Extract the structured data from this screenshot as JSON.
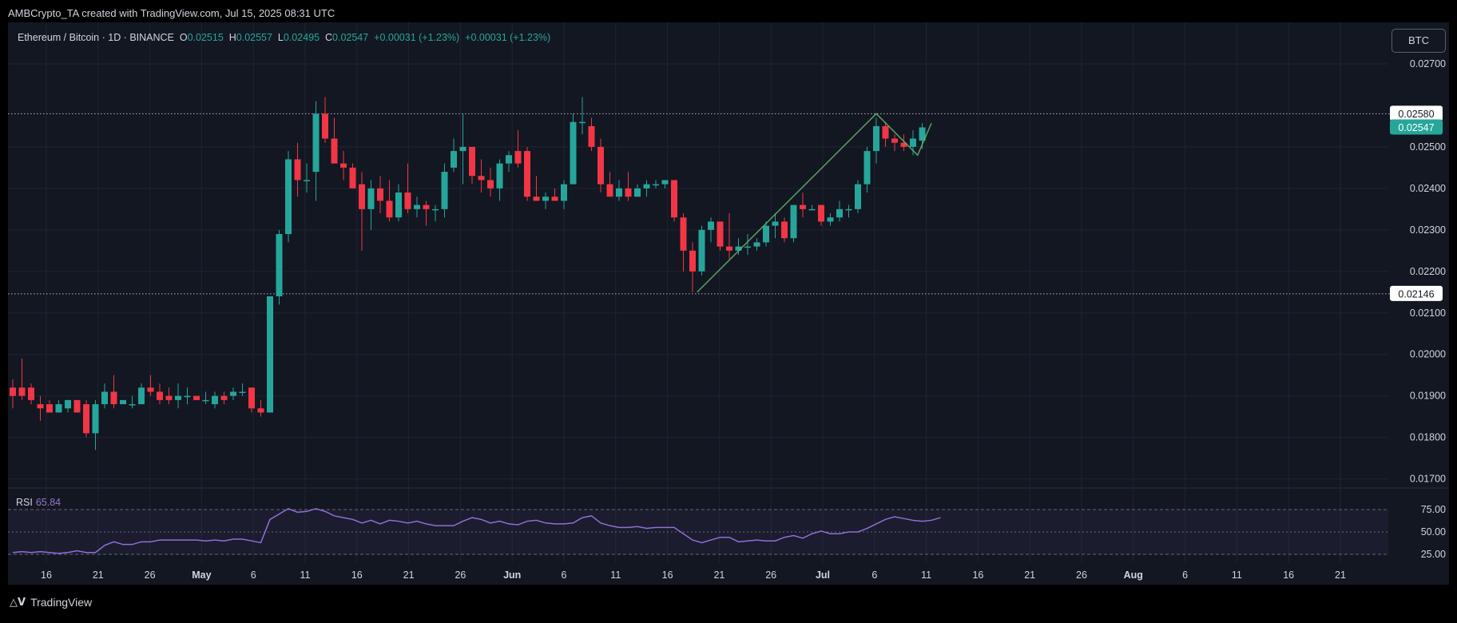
{
  "header": {
    "attribution": "AMBCrypto_TA created with TradingView.com, Jul 15, 2025 08:31 UTC"
  },
  "legend": {
    "symbol": "Ethereum / Bitcoin · 1D · BINANCE",
    "o_label": "O",
    "o_value": "0.02515",
    "h_label": "H",
    "h_value": "0.02557",
    "l_label": "L",
    "l_value": "0.02495",
    "c_label": "C",
    "c_value": "0.02547",
    "change1": "+0.00031 (+1.23%)",
    "change2": "+0.00031 (+1.23%)"
  },
  "currency_badge": "BTC",
  "rsi_label": {
    "name": "RSI",
    "value": "65.84"
  },
  "branding": {
    "text": "TradingView"
  },
  "colors": {
    "background": "#131722",
    "up": "#26a69a",
    "down": "#f23645",
    "rsi": "#8e6fd6",
    "trendline": "#66bb6a",
    "grid": "#1f2430",
    "text": "#d1d4dc"
  },
  "chart_data": {
    "type": "candlestick",
    "x_tick_labels": [
      "16",
      "21",
      "26",
      "May",
      "6",
      "11",
      "16",
      "21",
      "26",
      "Jun",
      "6",
      "11",
      "16",
      "21",
      "26",
      "Jul",
      "6",
      "11",
      "16",
      "21",
      "26",
      "Aug",
      "6",
      "11",
      "16",
      "21"
    ],
    "y_axis": {
      "ticks": [
        "0.02700",
        "0.02500",
        "0.02400",
        "0.02300",
        "0.02200",
        "0.02100",
        "0.02000",
        "0.01900",
        "0.01800",
        "0.01700"
      ],
      "range": [
        0.0168,
        0.028
      ]
    },
    "reference_lines": [
      {
        "value": 0.0258,
        "label": "0.02580"
      },
      {
        "value": 0.02146,
        "label": "0.02146"
      }
    ],
    "last_price": {
      "value": 0.02547,
      "label": "0.02547"
    },
    "series": [
      {
        "o": 0.0192,
        "h": 0.0194,
        "l": 0.0187,
        "c": 0.019
      },
      {
        "o": 0.0192,
        "h": 0.0199,
        "l": 0.0189,
        "c": 0.019
      },
      {
        "o": 0.0192,
        "h": 0.0193,
        "l": 0.0188,
        "c": 0.0189
      },
      {
        "o": 0.0188,
        "h": 0.019,
        "l": 0.0184,
        "c": 0.0187
      },
      {
        "o": 0.0188,
        "h": 0.0189,
        "l": 0.0186,
        "c": 0.0186
      },
      {
        "o": 0.0186,
        "h": 0.0189,
        "l": 0.0186,
        "c": 0.0188
      },
      {
        "o": 0.0187,
        "h": 0.0189,
        "l": 0.0186,
        "c": 0.0189
      },
      {
        "o": 0.0189,
        "h": 0.0189,
        "l": 0.0186,
        "c": 0.0186
      },
      {
        "o": 0.0188,
        "h": 0.0189,
        "l": 0.018,
        "c": 0.0181
      },
      {
        "o": 0.0181,
        "h": 0.0189,
        "l": 0.0177,
        "c": 0.0188
      },
      {
        "o": 0.0188,
        "h": 0.0193,
        "l": 0.0187,
        "c": 0.0191
      },
      {
        "o": 0.0191,
        "h": 0.0195,
        "l": 0.0187,
        "c": 0.0188
      },
      {
        "o": 0.0188,
        "h": 0.0189,
        "l": 0.0188,
        "c": 0.0189
      },
      {
        "o": 0.0188,
        "h": 0.019,
        "l": 0.0187,
        "c": 0.0188
      },
      {
        "o": 0.0188,
        "h": 0.0193,
        "l": 0.0188,
        "c": 0.0192
      },
      {
        "o": 0.0192,
        "h": 0.0195,
        "l": 0.019,
        "c": 0.0191
      },
      {
        "o": 0.0191,
        "h": 0.0193,
        "l": 0.0188,
        "c": 0.0189
      },
      {
        "o": 0.019,
        "h": 0.0192,
        "l": 0.0188,
        "c": 0.0189
      },
      {
        "o": 0.0189,
        "h": 0.0193,
        "l": 0.0187,
        "c": 0.019
      },
      {
        "o": 0.019,
        "h": 0.0192,
        "l": 0.0188,
        "c": 0.019
      },
      {
        "o": 0.019,
        "h": 0.019,
        "l": 0.0189,
        "c": 0.0189
      },
      {
        "o": 0.0189,
        "h": 0.0191,
        "l": 0.0188,
        "c": 0.0189
      },
      {
        "o": 0.0188,
        "h": 0.0191,
        "l": 0.0187,
        "c": 0.019
      },
      {
        "o": 0.019,
        "h": 0.0191,
        "l": 0.0188,
        "c": 0.0189
      },
      {
        "o": 0.019,
        "h": 0.0192,
        "l": 0.0189,
        "c": 0.0191
      },
      {
        "o": 0.0191,
        "h": 0.0193,
        "l": 0.019,
        "c": 0.0191
      },
      {
        "o": 0.0192,
        "h": 0.0192,
        "l": 0.0186,
        "c": 0.0187
      },
      {
        "o": 0.0187,
        "h": 0.0189,
        "l": 0.0185,
        "c": 0.0186
      },
      {
        "o": 0.0186,
        "h": 0.0214,
        "l": 0.0186,
        "c": 0.0214
      },
      {
        "o": 0.0214,
        "h": 0.023,
        "l": 0.0212,
        "c": 0.0229
      },
      {
        "o": 0.0229,
        "h": 0.0249,
        "l": 0.0227,
        "c": 0.0247
      },
      {
        "o": 0.0247,
        "h": 0.0251,
        "l": 0.0238,
        "c": 0.0242
      },
      {
        "o": 0.0242,
        "h": 0.0246,
        "l": 0.0239,
        "c": 0.0242
      },
      {
        "o": 0.0244,
        "h": 0.0261,
        "l": 0.0237,
        "c": 0.0258
      },
      {
        "o": 0.0258,
        "h": 0.0262,
        "l": 0.0251,
        "c": 0.0252
      },
      {
        "o": 0.0252,
        "h": 0.0257,
        "l": 0.0246,
        "c": 0.0246
      },
      {
        "o": 0.0246,
        "h": 0.0249,
        "l": 0.0242,
        "c": 0.0245
      },
      {
        "o": 0.0245,
        "h": 0.0246,
        "l": 0.024,
        "c": 0.024
      },
      {
        "o": 0.0241,
        "h": 0.0244,
        "l": 0.0225,
        "c": 0.0235
      },
      {
        "o": 0.0235,
        "h": 0.0242,
        "l": 0.023,
        "c": 0.024
      },
      {
        "o": 0.024,
        "h": 0.0243,
        "l": 0.0234,
        "c": 0.0237
      },
      {
        "o": 0.0237,
        "h": 0.0242,
        "l": 0.0232,
        "c": 0.0233
      },
      {
        "o": 0.0233,
        "h": 0.0241,
        "l": 0.0232,
        "c": 0.0239
      },
      {
        "o": 0.0239,
        "h": 0.0246,
        "l": 0.0234,
        "c": 0.0235
      },
      {
        "o": 0.0235,
        "h": 0.0238,
        "l": 0.0233,
        "c": 0.0236
      },
      {
        "o": 0.0236,
        "h": 0.0237,
        "l": 0.0231,
        "c": 0.0235
      },
      {
        "o": 0.0235,
        "h": 0.0236,
        "l": 0.0232,
        "c": 0.0235
      },
      {
        "o": 0.0235,
        "h": 0.0246,
        "l": 0.0233,
        "c": 0.0244
      },
      {
        "o": 0.0245,
        "h": 0.0252,
        "l": 0.0244,
        "c": 0.0249
      },
      {
        "o": 0.0249,
        "h": 0.0258,
        "l": 0.0241,
        "c": 0.025
      },
      {
        "o": 0.025,
        "h": 0.025,
        "l": 0.0241,
        "c": 0.0243
      },
      {
        "o": 0.0243,
        "h": 0.0247,
        "l": 0.0239,
        "c": 0.0242
      },
      {
        "o": 0.0242,
        "h": 0.0245,
        "l": 0.0238,
        "c": 0.024
      },
      {
        "o": 0.024,
        "h": 0.0247,
        "l": 0.0237,
        "c": 0.0246
      },
      {
        "o": 0.0246,
        "h": 0.0249,
        "l": 0.0244,
        "c": 0.0248
      },
      {
        "o": 0.0249,
        "h": 0.0254,
        "l": 0.0245,
        "c": 0.0246
      },
      {
        "o": 0.0249,
        "h": 0.025,
        "l": 0.0237,
        "c": 0.0238
      },
      {
        "o": 0.0238,
        "h": 0.0243,
        "l": 0.0237,
        "c": 0.0237
      },
      {
        "o": 0.0237,
        "h": 0.0239,
        "l": 0.0235,
        "c": 0.0238
      },
      {
        "o": 0.0238,
        "h": 0.024,
        "l": 0.0237,
        "c": 0.0237
      },
      {
        "o": 0.0237,
        "h": 0.0242,
        "l": 0.0235,
        "c": 0.0241
      },
      {
        "o": 0.0241,
        "h": 0.0258,
        "l": 0.0241,
        "c": 0.0256
      },
      {
        "o": 0.0256,
        "h": 0.0262,
        "l": 0.0253,
        "c": 0.0256
      },
      {
        "o": 0.0255,
        "h": 0.0257,
        "l": 0.0249,
        "c": 0.025
      },
      {
        "o": 0.025,
        "h": 0.0252,
        "l": 0.0239,
        "c": 0.0241
      },
      {
        "o": 0.0241,
        "h": 0.0244,
        "l": 0.0238,
        "c": 0.0238
      },
      {
        "o": 0.0238,
        "h": 0.0242,
        "l": 0.0237,
        "c": 0.024
      },
      {
        "o": 0.024,
        "h": 0.0244,
        "l": 0.0237,
        "c": 0.0238
      },
      {
        "o": 0.0238,
        "h": 0.0241,
        "l": 0.0238,
        "c": 0.024
      },
      {
        "o": 0.024,
        "h": 0.0242,
        "l": 0.0238,
        "c": 0.0241
      },
      {
        "o": 0.0241,
        "h": 0.0242,
        "l": 0.024,
        "c": 0.0241
      },
      {
        "o": 0.0241,
        "h": 0.0242,
        "l": 0.024,
        "c": 0.0242
      },
      {
        "o": 0.0242,
        "h": 0.0242,
        "l": 0.0232,
        "c": 0.0233
      },
      {
        "o": 0.0233,
        "h": 0.0234,
        "l": 0.022,
        "c": 0.0225
      },
      {
        "o": 0.0225,
        "h": 0.0227,
        "l": 0.0215,
        "c": 0.022
      },
      {
        "o": 0.022,
        "h": 0.0231,
        "l": 0.0219,
        "c": 0.023
      },
      {
        "o": 0.023,
        "h": 0.0233,
        "l": 0.0227,
        "c": 0.0232
      },
      {
        "o": 0.0232,
        "h": 0.0232,
        "l": 0.0225,
        "c": 0.0226
      },
      {
        "o": 0.0226,
        "h": 0.0234,
        "l": 0.0223,
        "c": 0.0225
      },
      {
        "o": 0.0225,
        "h": 0.0228,
        "l": 0.0224,
        "c": 0.0226
      },
      {
        "o": 0.0226,
        "h": 0.0229,
        "l": 0.0224,
        "c": 0.0226
      },
      {
        "o": 0.0226,
        "h": 0.0228,
        "l": 0.0225,
        "c": 0.0227
      },
      {
        "o": 0.0227,
        "h": 0.0232,
        "l": 0.0226,
        "c": 0.0231
      },
      {
        "o": 0.0231,
        "h": 0.0234,
        "l": 0.0228,
        "c": 0.0232
      },
      {
        "o": 0.0232,
        "h": 0.0233,
        "l": 0.0227,
        "c": 0.0228
      },
      {
        "o": 0.0228,
        "h": 0.0236,
        "l": 0.0227,
        "c": 0.0236
      },
      {
        "o": 0.0236,
        "h": 0.0239,
        "l": 0.0233,
        "c": 0.0235
      },
      {
        "o": 0.0235,
        "h": 0.0236,
        "l": 0.0235,
        "c": 0.0235
      },
      {
        "o": 0.0236,
        "h": 0.0236,
        "l": 0.0231,
        "c": 0.0232
      },
      {
        "o": 0.0232,
        "h": 0.0234,
        "l": 0.0231,
        "c": 0.0233
      },
      {
        "o": 0.0233,
        "h": 0.0237,
        "l": 0.0232,
        "c": 0.0235
      },
      {
        "o": 0.0235,
        "h": 0.0236,
        "l": 0.0233,
        "c": 0.0235
      },
      {
        "o": 0.0235,
        "h": 0.0242,
        "l": 0.0234,
        "c": 0.0241
      },
      {
        "o": 0.0241,
        "h": 0.025,
        "l": 0.0239,
        "c": 0.0249
      },
      {
        "o": 0.0249,
        "h": 0.0257,
        "l": 0.0246,
        "c": 0.0255
      },
      {
        "o": 0.0255,
        "h": 0.0256,
        "l": 0.025,
        "c": 0.0252
      },
      {
        "o": 0.0252,
        "h": 0.0253,
        "l": 0.0249,
        "c": 0.0251
      },
      {
        "o": 0.0251,
        "h": 0.0253,
        "l": 0.0249,
        "c": 0.025
      },
      {
        "o": 0.025,
        "h": 0.0254,
        "l": 0.0248,
        "c": 0.0252
      },
      {
        "o": 0.02515,
        "h": 0.02557,
        "l": 0.02495,
        "c": 0.02547
      }
    ],
    "trendline": [
      {
        "candle": 74.5,
        "price": 0.0215
      },
      {
        "candle": 94,
        "price": 0.0258
      },
      {
        "candle": 98.5,
        "price": 0.0248
      },
      {
        "candle": 100,
        "price": 0.02557
      }
    ],
    "rsi": {
      "label": "RSI",
      "current": "65.84",
      "levels": [
        "75.00",
        "50.00",
        "25.00"
      ],
      "values": [
        27,
        28,
        27,
        28,
        27,
        26,
        27,
        29,
        27,
        27,
        35,
        39,
        36,
        36,
        39,
        39,
        41,
        41,
        41,
        41,
        41,
        40,
        41,
        40,
        42,
        42,
        40,
        38,
        64,
        70,
        76,
        72,
        73,
        76,
        73,
        68,
        66,
        64,
        60,
        63,
        59,
        63,
        62,
        60,
        62,
        59,
        57,
        57,
        57,
        62,
        66,
        64,
        60,
        62,
        59,
        58,
        62,
        63,
        60,
        59,
        59,
        60,
        66,
        68,
        60,
        57,
        55,
        55,
        56,
        54,
        55,
        55,
        55,
        48,
        41,
        38,
        41,
        44,
        44,
        39,
        40,
        41,
        40,
        40,
        44,
        46,
        43,
        48,
        51,
        48,
        48,
        50,
        50,
        54,
        59,
        64,
        67,
        65,
        63,
        62,
        63,
        66
      ]
    }
  }
}
